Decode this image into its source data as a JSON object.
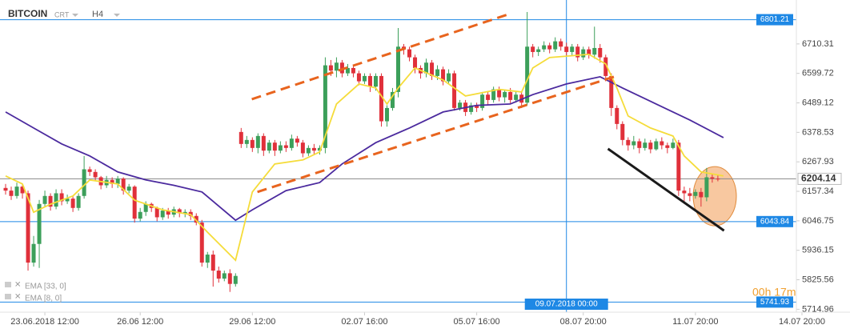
{
  "chart_data": {
    "type": "candlestick",
    "title": "BITCOIN",
    "subtitle": "CRT",
    "timeframe": "H4",
    "up_color": "#3c9f5a",
    "down_color": "#e0303a",
    "open": [
      6170,
      6160,
      6140,
      6175,
      6150,
      5890,
      5960,
      6110,
      6140,
      6100,
      6150,
      6120,
      6130,
      6095,
      6140,
      6240,
      6230,
      6210,
      6180,
      6200,
      6185,
      6205,
      6160,
      6175,
      6055,
      6080,
      6110,
      6095,
      6060,
      6085,
      6070,
      6090,
      6075,
      6080,
      6065,
      6040,
      5890,
      5920,
      5860,
      5830,
      5850,
      5810,
      6380,
      6335,
      6350,
      6320,
      6365,
      6310,
      6340,
      6310,
      6330,
      6320,
      6355,
      6340,
      6300,
      6320,
      6310,
      6320,
      6630,
      6610,
      6640,
      6600,
      6620,
      6600,
      6570,
      6590,
      6550,
      6590,
      6420,
      6470,
      6530,
      6700,
      6690,
      6660,
      6620,
      6600,
      6640,
      6590,
      6615,
      6570,
      6600,
      6470,
      6490,
      6455,
      6480,
      6470,
      6520,
      6500,
      6540,
      6510,
      6530,
      6500,
      6520,
      6490,
      6700,
      6680,
      6690,
      6705,
      6690,
      6720,
      6700,
      6680,
      6700,
      6660,
      6690,
      6670,
      6695,
      6660,
      6590,
      6470,
      6410,
      6350,
      6330,
      6345,
      6320,
      6340,
      6315,
      6345,
      6330,
      6320,
      6340,
      6160,
      6150,
      6140,
      6155,
      6135,
      6210,
      6205
    ],
    "high": [
      6185,
      6175,
      6190,
      6185,
      6160,
      5990,
      6125,
      6160,
      6150,
      6165,
      6165,
      6145,
      6140,
      6150,
      6290,
      6250,
      6240,
      6215,
      6215,
      6210,
      6215,
      6210,
      6185,
      6180,
      6095,
      6120,
      6115,
      6100,
      6095,
      6095,
      6100,
      6095,
      6090,
      6090,
      6075,
      6050,
      5930,
      5935,
      5875,
      5860,
      5865,
      5850,
      6395,
      6365,
      6360,
      6375,
      6375,
      6350,
      6350,
      6345,
      6345,
      6370,
      6365,
      6350,
      6330,
      6335,
      6330,
      6660,
      6650,
      6660,
      6650,
      6635,
      6630,
      6610,
      6600,
      6600,
      6600,
      6600,
      6480,
      6545,
      6770,
      6710,
      6700,
      6670,
      6630,
      6655,
      6650,
      6630,
      6625,
      6615,
      6610,
      6500,
      6500,
      6490,
      6490,
      6530,
      6530,
      6550,
      6550,
      6540,
      6545,
      6530,
      6530,
      6830,
      6710,
      6700,
      6720,
      6715,
      6735,
      6730,
      6715,
      6710,
      6710,
      6700,
      6700,
      6775,
      6710,
      6670,
      6600,
      6480,
      6420,
      6360,
      6365,
      6355,
      6355,
      6350,
      6355,
      6360,
      6340,
      6355,
      6350,
      6175,
      6170,
      6165,
      6170,
      6245,
      6225,
      6220
    ],
    "low": [
      6145,
      6125,
      6130,
      6130,
      5860,
      5875,
      5870,
      6100,
      6085,
      6090,
      6105,
      6110,
      6080,
      6085,
      6130,
      6215,
      6195,
      6165,
      6170,
      6170,
      6170,
      6145,
      6150,
      6040,
      6045,
      6065,
      6080,
      6045,
      6050,
      6055,
      6060,
      6060,
      6060,
      6050,
      6030,
      5875,
      5870,
      5800,
      5815,
      5820,
      5780,
      5800,
      6320,
      6320,
      6305,
      6300,
      6290,
      6300,
      6290,
      6300,
      6305,
      6310,
      6325,
      6285,
      6290,
      6295,
      6295,
      6300,
      6590,
      6585,
      6585,
      6590,
      6585,
      6555,
      6560,
      6530,
      6535,
      6400,
      6400,
      6460,
      6510,
      6670,
      6645,
      6600,
      6580,
      6585,
      6575,
      6575,
      6555,
      6560,
      6460,
      6460,
      6440,
      6445,
      6455,
      6460,
      6480,
      6490,
      6495,
      6490,
      6485,
      6490,
      6470,
      6480,
      6660,
      6665,
      6680,
      6675,
      6680,
      6685,
      6665,
      6665,
      6645,
      6650,
      6655,
      6655,
      6640,
      6570,
      6440,
      6390,
      6330,
      6310,
      6315,
      6300,
      6310,
      6300,
      6310,
      6315,
      6300,
      6315,
      6140,
      6120,
      6120,
      6130,
      6100,
      6120,
      6190,
      6195
    ],
    "close": [
      6160,
      6140,
      6175,
      6150,
      5890,
      5960,
      6110,
      6140,
      6100,
      6150,
      6120,
      6130,
      6095,
      6140,
      6240,
      6230,
      6210,
      6180,
      6200,
      6185,
      6205,
      6160,
      6175,
      6055,
      6080,
      6110,
      6095,
      6060,
      6085,
      6070,
      6090,
      6075,
      6080,
      6065,
      6040,
      5890,
      5920,
      5860,
      5830,
      5850,
      5810,
      5840,
      6335,
      6350,
      6320,
      6365,
      6310,
      6340,
      6310,
      6330,
      6320,
      6355,
      6340,
      6300,
      6320,
      6310,
      6320,
      6630,
      6610,
      6640,
      6600,
      6620,
      6600,
      6570,
      6590,
      6550,
      6590,
      6420,
      6470,
      6530,
      6700,
      6690,
      6660,
      6620,
      6600,
      6640,
      6590,
      6615,
      6570,
      6600,
      6470,
      6490,
      6455,
      6480,
      6470,
      6520,
      6500,
      6540,
      6510,
      6530,
      6500,
      6520,
      6490,
      6700,
      6680,
      6690,
      6705,
      6690,
      6720,
      6700,
      6680,
      6700,
      6660,
      6690,
      6670,
      6695,
      6660,
      6590,
      6470,
      6410,
      6350,
      6330,
      6345,
      6320,
      6340,
      6315,
      6345,
      6330,
      6320,
      6340,
      6160,
      6150,
      6140,
      6155,
      6135,
      6210,
      6205,
      6204.14
    ],
    "series": [
      {
        "name": "EMA [33, 0]",
        "color": "#4b2a9e",
        "x": [
          0,
          5,
          10,
          15,
          20,
          25,
          30,
          35,
          41,
          44,
          50,
          56,
          60,
          66,
          72,
          78,
          84,
          90,
          94,
          100,
          106,
          110,
          116,
          122,
          128
        ],
        "values": [
          6455,
          6395,
          6335,
          6290,
          6230,
          6200,
          6180,
          6155,
          6049,
          6088,
          6160,
          6190,
          6260,
          6340,
          6395,
          6455,
          6480,
          6485,
          6520,
          6560,
          6587,
          6545,
          6485,
          6425,
          6359
        ]
      },
      {
        "name": "EMA [8, 0]",
        "color": "#f5dc3a",
        "x": [
          0,
          3,
          5,
          8,
          12,
          15,
          20,
          23,
          28,
          33,
          36,
          41,
          44,
          48,
          53,
          56,
          59,
          63,
          66,
          68,
          70,
          73,
          78,
          82,
          88,
          92,
          94,
          97,
          104,
          107,
          109,
          111,
          115,
          119,
          121,
          124,
          128
        ],
        "values": [
          6215,
          6185,
          6079,
          6109,
          6140,
          6200,
          6185,
          6124,
          6088,
          6070,
          6004,
          5899,
          6155,
          6260,
          6275,
          6305,
          6485,
          6560,
          6545,
          6485,
          6545,
          6620,
          6575,
          6515,
          6540,
          6530,
          6620,
          6659,
          6671,
          6635,
          6545,
          6440,
          6395,
          6365,
          6290,
          6230,
          6215
        ]
      }
    ],
    "trendlines": [
      {
        "color": "#e8641e",
        "x": [
          43.9,
          89.6
        ],
        "values": [
          6503,
          6821
        ]
      },
      {
        "color": "#e8641e",
        "x": [
          44.9,
          108.9
        ],
        "values": [
          6155,
          6590
        ]
      },
      {
        "color": "#1a1a1a",
        "x": [
          107.4,
          128.1
        ],
        "values": [
          6317,
          6010
        ]
      }
    ],
    "highlight": {
      "color": "#f4a460",
      "x": [
        122.6,
        130.3
      ],
      "values": [
        6250,
        6028
      ]
    },
    "levels": [
      {
        "value": 6801.21,
        "color": "#1e88e5"
      },
      {
        "value": 6204.14,
        "color": "#888888"
      },
      {
        "value": 6043.84,
        "color": "#1e88e5"
      },
      {
        "value": 5741.93,
        "color": "#1e88e5"
      }
    ],
    "crosshair": {
      "x": 100,
      "label": "09.07.2018 00:00",
      "color": "#1e88e5"
    },
    "countdown": "00h 17m",
    "xlim": [
      -1,
      141
    ],
    "ylim": [
      5704,
      6875
    ],
    "yticks": [
      5714.96,
      5825.56,
      5936.15,
      6046.75,
      6157.34,
      6267.93,
      6378.53,
      6489.12,
      6599.72,
      6710.31
    ],
    "xticks": [
      {
        "value": 7,
        "label": "23.06.2018 12:00"
      },
      {
        "value": 24,
        "label": "26.06 12:00"
      },
      {
        "value": 44,
        "label": "29.06 12:00"
      },
      {
        "value": 64,
        "label": "02.07 16:00"
      },
      {
        "value": 84,
        "label": "05.07 16:00"
      },
      {
        "value": 103,
        "label": "08.07 20:00"
      },
      {
        "value": 123,
        "label": "11.07 20:00"
      },
      {
        "value": 142,
        "label": "14.07 20:00"
      }
    ]
  }
}
